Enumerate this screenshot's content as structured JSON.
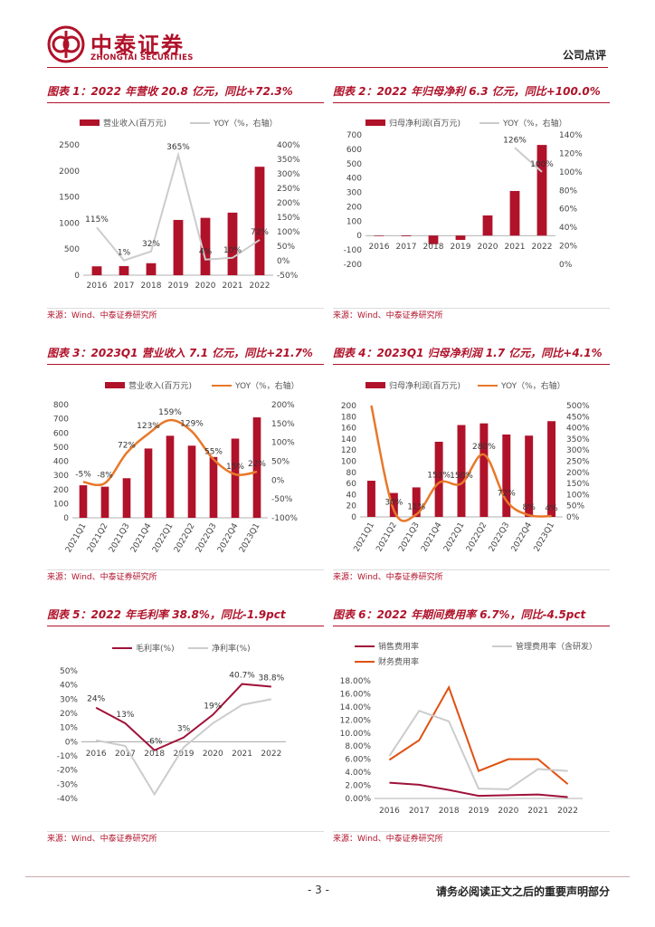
{
  "header": {
    "logo_cn": "中泰证券",
    "logo_en": "ZHONGTAI SECURITIES",
    "doc_type": "公司点评",
    "brand_color": "#b0122a"
  },
  "footer": {
    "page": "- 3 -",
    "disclaimer": "请务必阅读正文之后的重要声明部分"
  },
  "panels": [
    {
      "title": "图表 1：2022 年营收 20.8 亿元，同比+72.3%",
      "source": "来源：Wind、中泰证券研究所"
    },
    {
      "title": "图表 2：2022 年归母净利 6.3 亿元，同比+100.0%",
      "source": "来源：Wind、中泰证券研究所"
    },
    {
      "title": "图表 3：2023Q1 营业收入 7.1 亿元，同比+21.7%",
      "source": "来源：Wind、中泰证券研究所"
    },
    {
      "title": "图表 4：2023Q1 归母净利润 1.7 亿元，同比+4.1%",
      "source": "来源：Wind、中泰证券研究所"
    },
    {
      "title": "图表 5：2022 年毛利率 38.8%，同比-1.9pct",
      "source": "来源：Wind、中泰证券研究所"
    },
    {
      "title": "图表 6：2022 年期间费用率 6.7%，同比-4.5pct",
      "source": "来源：Wind、中泰证券研究所"
    }
  ],
  "chart_data": [
    {
      "type": "bar+line",
      "legend": [
        "营业收入(百万元)",
        "YOY（%，右轴）"
      ],
      "categories": [
        "2016",
        "2017",
        "2018",
        "2019",
        "2020",
        "2021",
        "2022"
      ],
      "bar_values": [
        170,
        175,
        230,
        1060,
        1100,
        1200,
        2080
      ],
      "line_values": [
        115,
        1,
        32,
        365,
        4,
        10,
        72
      ],
      "line_labels": [
        "115%",
        "1%",
        "32%",
        "365%",
        "4%",
        "10%",
        "72%"
      ],
      "y_left": [
        0,
        2500
      ],
      "y_left_ticks": [
        "0",
        "500",
        "1000",
        "1500",
        "2000",
        "2500"
      ],
      "y_right": [
        -50,
        400
      ],
      "y_right_ticks": [
        "-50%",
        "0%",
        "50%",
        "100%",
        "150%",
        "200%",
        "250%",
        "300%",
        "350%",
        "400%"
      ],
      "bar_color": "#b0122a",
      "line_color": "#cccccc"
    },
    {
      "type": "bar+line",
      "legend": [
        "归母净利润(百万元)",
        "YOY（%，右轴）"
      ],
      "categories": [
        "2016",
        "2017",
        "2018",
        "2019",
        "2020",
        "2021",
        "2022"
      ],
      "bar_values": [
        0,
        -5,
        -60,
        -30,
        140,
        310,
        630
      ],
      "line_values": [
        null,
        null,
        null,
        null,
        null,
        126,
        100
      ],
      "line_labels": [
        "",
        "",
        "",
        "",
        "",
        "126%",
        "100%"
      ],
      "y_left": [
        -200,
        700
      ],
      "y_left_ticks": [
        "-200",
        "-100",
        "0",
        "100",
        "200",
        "300",
        "400",
        "500",
        "600",
        "700"
      ],
      "y_right": [
        0,
        140
      ],
      "y_right_ticks": [
        "0%",
        "20%",
        "40%",
        "60%",
        "80%",
        "100%",
        "120%",
        "140%"
      ],
      "bar_color": "#b0122a",
      "line_color": "#cccccc"
    },
    {
      "type": "bar+line",
      "legend": [
        "营业收入(百万元)",
        "YOY（%，右轴）"
      ],
      "categories": [
        "2021Q1",
        "2021Q2",
        "2021Q3",
        "2021Q4",
        "2022Q1",
        "2022Q2",
        "2022Q3",
        "2022Q4",
        "2023Q1"
      ],
      "bar_values": [
        230,
        220,
        280,
        490,
        580,
        510,
        430,
        560,
        710
      ],
      "line_values": [
        -5,
        -8,
        72,
        123,
        159,
        129,
        55,
        15,
        22
      ],
      "line_labels": [
        "-5%",
        "-8%",
        "72%",
        "123%",
        "159%",
        "129%",
        "55%",
        "15%",
        "22%"
      ],
      "y_left": [
        0,
        800
      ],
      "y_left_ticks": [
        "0",
        "100",
        "200",
        "300",
        "400",
        "500",
        "600",
        "700",
        "800"
      ],
      "y_right": [
        -100,
        200
      ],
      "y_right_ticks": [
        "-100%",
        "-50%",
        "0%",
        "50%",
        "100%",
        "150%",
        "200%"
      ],
      "bar_color": "#b0122a",
      "line_color": "#e8782a"
    },
    {
      "type": "bar+line",
      "legend": [
        "归母净利润(百万元)",
        "YOY（%，右轴）"
      ],
      "categories": [
        "2021Q1",
        "2021Q2",
        "2021Q3",
        "2021Q4",
        "2022Q1",
        "2022Q2",
        "2022Q3",
        "2022Q4",
        "2023Q1"
      ],
      "bar_values": [
        65,
        43,
        53,
        135,
        165,
        168,
        148,
        146,
        172
      ],
      "line_values": [
        500,
        30,
        11,
        153,
        150,
        280,
        72,
        8,
        4
      ],
      "line_labels": [
        "",
        "30%",
        "11%",
        "153%",
        "150%",
        "280%",
        "72%",
        "8%",
        "4%"
      ],
      "y_left": [
        0,
        200
      ],
      "y_left_ticks": [
        "0",
        "20",
        "40",
        "60",
        "80",
        "100",
        "120",
        "140",
        "160",
        "180",
        "200"
      ],
      "y_right": [
        0,
        500
      ],
      "y_right_ticks": [
        "0%",
        "50%",
        "100%",
        "150%",
        "200%",
        "250%",
        "300%",
        "350%",
        "400%",
        "450%",
        "500%"
      ],
      "bar_color": "#b0122a",
      "line_color": "#e8782a"
    },
    {
      "type": "line",
      "legend": [
        "毛利率(%)",
        "净利率(%)"
      ],
      "categories": [
        "2016",
        "2017",
        "2018",
        "2019",
        "2020",
        "2021",
        "2022"
      ],
      "series": [
        {
          "name": "毛利率(%)",
          "values": [
            24,
            13,
            -6,
            3,
            19,
            40.7,
            38.8
          ],
          "labels": [
            "24%",
            "13%",
            "-6%",
            "3%",
            "19%",
            "40.7%",
            "38.8%"
          ],
          "color": "#a0123a"
        },
        {
          "name": "净利率(%)",
          "values": [
            1,
            -3,
            -37,
            -4,
            13,
            26,
            30
          ],
          "labels": [],
          "color": "#cccccc"
        }
      ],
      "y_range": [
        -40,
        50
      ],
      "y_ticks": [
        "-40%",
        "-30%",
        "-20%",
        "-10%",
        "0%",
        "10%",
        "20%",
        "30%",
        "40%",
        "50%"
      ]
    },
    {
      "type": "line",
      "legend": [
        "销售费用率",
        "管理费用率（含研发）",
        "财务费用率"
      ],
      "categories": [
        "2016",
        "2017",
        "2018",
        "2019",
        "2020",
        "2021",
        "2022"
      ],
      "series": [
        {
          "name": "销售费用率",
          "values": [
            2.4,
            2.1,
            1.3,
            0.4,
            0.5,
            0.6,
            0.2
          ],
          "color": "#a0123a"
        },
        {
          "name": "管理费用率（含研发）",
          "values": [
            6.5,
            13.4,
            11.8,
            1.5,
            1.4,
            4.5,
            4.2
          ],
          "color": "#cccccc"
        },
        {
          "name": "财务费用率",
          "values": [
            5.9,
            8.9,
            17.0,
            4.2,
            6.0,
            6.0,
            2.2
          ],
          "color": "#e05010"
        }
      ],
      "y_range": [
        0,
        18
      ],
      "y_ticks": [
        "0.00%",
        "2.00%",
        "4.00%",
        "6.00%",
        "8.00%",
        "10.00%",
        "12.00%",
        "14.00%",
        "16.00%",
        "18.00%"
      ]
    }
  ]
}
